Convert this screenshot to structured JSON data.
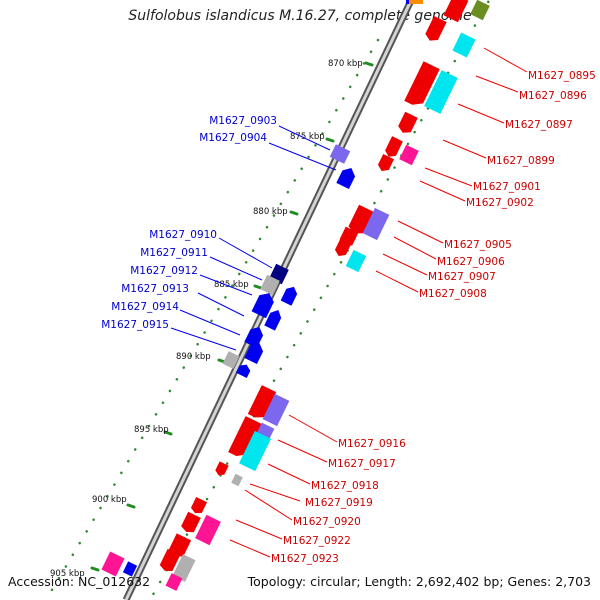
{
  "title": "Sulfolobus islandicus M.16.27, complete genome",
  "footer": {
    "accession": "Accession: NC_012632",
    "topology": "Topology: circular; Length: 2,692,402 bp; Genes: 2,703"
  },
  "colors": {
    "forward_gene": "#0000ee",
    "reverse_gene": "#ee0000",
    "forward_label": "#0000cc",
    "reverse_label": "#cc0000",
    "tick": "#228b22",
    "backbone": "#888888",
    "cyan": "#00e5ee",
    "slate": "#7b68ee",
    "pink": "#ff1493",
    "gray": "#b0b0b0",
    "navy": "#000080"
  },
  "ticks": [
    "870 kbp",
    "875 kbp",
    "880 kbp",
    "885 kbp",
    "890 kbp",
    "895 kbp",
    "900 kbp",
    "905 kbp"
  ],
  "forward_labels": [
    "M1627_0903",
    "M1627_0904",
    "M1627_0910",
    "M1627_0911",
    "M1627_0912",
    "M1627_0913",
    "M1627_0914",
    "M1627_0915"
  ],
  "reverse_labels": [
    "M1627_0895",
    "M1627_0896",
    "M1627_0897",
    "M1627_0899",
    "M1627_0901",
    "M1627_0902",
    "M1627_0905",
    "M1627_0906",
    "M1627_0907",
    "M1627_0908",
    "M1627_0916",
    "M1627_0917",
    "M1627_0918",
    "M1627_0919",
    "M1627_0920",
    "M1627_0922",
    "M1627_0923"
  ]
}
